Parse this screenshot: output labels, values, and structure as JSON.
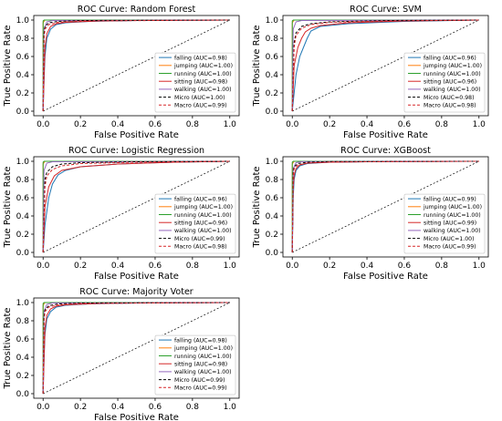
{
  "colors": {
    "falling": "#1f77b4",
    "jumping": "#ff7f0e",
    "running": "#2ca02c",
    "sitting": "#d62728",
    "walking": "#9467bd",
    "micro": "#000000",
    "macro": "#d62728",
    "diagonal": "#000000"
  },
  "chart_data": [
    {
      "type": "line",
      "title": "ROC Curve: Random Forest",
      "xlabel": "False Positive Rate",
      "ylabel": "True Positive Rate",
      "xlim": [
        -0.05,
        1.05
      ],
      "ylim": [
        -0.05,
        1.05
      ],
      "xticks": [
        "0.0",
        "0.2",
        "0.4",
        "0.6",
        "0.8",
        "1.0"
      ],
      "yticks": [
        "0.0",
        "0.2",
        "0.4",
        "0.6",
        "0.8",
        "1.0"
      ],
      "legend_position": "lower-right",
      "series": [
        {
          "name": "falling (AUC=0.98)",
          "key": "falling",
          "dash": "solid",
          "x": [
            0,
            0.005,
            0.01,
            0.02,
            0.04,
            0.07,
            0.12,
            0.25,
            0.5,
            1
          ],
          "y": [
            0,
            0.35,
            0.6,
            0.8,
            0.9,
            0.95,
            0.97,
            0.985,
            0.995,
            1
          ]
        },
        {
          "name": "jumping (AUC=1.00)",
          "key": "jumping",
          "dash": "solid",
          "x": [
            0,
            0,
            0.01,
            1
          ],
          "y": [
            0,
            0.97,
            1,
            1
          ]
        },
        {
          "name": "running (AUC=1.00)",
          "key": "running",
          "dash": "solid",
          "x": [
            0,
            0,
            0.005,
            1
          ],
          "y": [
            0,
            0.99,
            1,
            1
          ]
        },
        {
          "name": "sitting (AUC=0.98)",
          "key": "sitting",
          "dash": "solid",
          "x": [
            0,
            0.01,
            0.02,
            0.04,
            0.07,
            0.12,
            0.3,
            0.6,
            1
          ],
          "y": [
            0,
            0.7,
            0.85,
            0.93,
            0.96,
            0.975,
            0.99,
            0.997,
            1
          ]
        },
        {
          "name": "walking (AUC=1.00)",
          "key": "walking",
          "dash": "solid",
          "x": [
            0,
            0.005,
            0.02,
            0.05,
            1
          ],
          "y": [
            0,
            0.9,
            0.98,
            0.995,
            1
          ]
        },
        {
          "name": "Micro (AUC=1.00)",
          "key": "micro",
          "dash": "dashed",
          "x": [
            0,
            0.005,
            0.01,
            0.03,
            0.08,
            0.2,
            1
          ],
          "y": [
            0,
            0.85,
            0.93,
            0.97,
            0.985,
            0.995,
            1
          ]
        },
        {
          "name": "Macro (AUC=0.99)",
          "key": "macro",
          "dash": "dashed",
          "x": [
            0,
            0.005,
            0.01,
            0.03,
            0.08,
            0.2,
            1
          ],
          "y": [
            0,
            0.8,
            0.9,
            0.95,
            0.975,
            0.99,
            1
          ]
        }
      ]
    },
    {
      "type": "line",
      "title": "ROC Curve: SVM",
      "xlabel": "False Positive Rate",
      "ylabel": "True Positive Rate",
      "xlim": [
        -0.05,
        1.05
      ],
      "ylim": [
        -0.05,
        1.05
      ],
      "xticks": [
        "0.0",
        "0.2",
        "0.4",
        "0.6",
        "0.8",
        "1.0"
      ],
      "yticks": [
        "0.0",
        "0.2",
        "0.4",
        "0.6",
        "0.8",
        "1.0"
      ],
      "legend_position": "lower-right",
      "series": [
        {
          "name": "falling (AUC=0.96)",
          "key": "falling",
          "dash": "solid",
          "x": [
            0,
            0.02,
            0.04,
            0.06,
            0.08,
            0.1,
            0.15,
            0.3,
            0.6,
            1
          ],
          "y": [
            0,
            0.4,
            0.6,
            0.7,
            0.8,
            0.88,
            0.93,
            0.96,
            0.985,
            1
          ]
        },
        {
          "name": "jumping (AUC=1.00)",
          "key": "jumping",
          "dash": "solid",
          "x": [
            0,
            0,
            0.01,
            1
          ],
          "y": [
            0,
            0.97,
            1,
            1
          ]
        },
        {
          "name": "running (AUC=1.00)",
          "key": "running",
          "dash": "solid",
          "x": [
            0,
            0,
            0.005,
            1
          ],
          "y": [
            0,
            0.99,
            1,
            1
          ]
        },
        {
          "name": "sitting (AUC=0.96)",
          "key": "sitting",
          "dash": "solid",
          "x": [
            0,
            0.01,
            0.03,
            0.05,
            0.07,
            0.1,
            0.15,
            0.3,
            0.6,
            1
          ],
          "y": [
            0,
            0.5,
            0.7,
            0.8,
            0.87,
            0.91,
            0.94,
            0.97,
            0.99,
            1
          ]
        },
        {
          "name": "walking (AUC=1.00)",
          "key": "walking",
          "dash": "solid",
          "x": [
            0,
            0.005,
            0.02,
            0.05,
            1
          ],
          "y": [
            0,
            0.9,
            0.98,
            0.995,
            1
          ]
        },
        {
          "name": "Micro (AUC=0.98)",
          "key": "micro",
          "dash": "dashed",
          "x": [
            0,
            0.01,
            0.02,
            0.05,
            0.1,
            0.2,
            0.5,
            1
          ],
          "y": [
            0,
            0.75,
            0.86,
            0.93,
            0.96,
            0.98,
            0.995,
            1
          ]
        },
        {
          "name": "Macro (AUC=0.98)",
          "key": "macro",
          "dash": "dashed",
          "x": [
            0,
            0.01,
            0.02,
            0.05,
            0.1,
            0.2,
            0.5,
            1
          ],
          "y": [
            0,
            0.7,
            0.83,
            0.91,
            0.95,
            0.975,
            0.99,
            1
          ]
        }
      ]
    },
    {
      "type": "line",
      "title": "ROC Curve: Logistic Regression",
      "xlabel": "False Positive Rate",
      "ylabel": "True Positive Rate",
      "xlim": [
        -0.05,
        1.05
      ],
      "ylim": [
        -0.05,
        1.05
      ],
      "xticks": [
        "0.0",
        "0.2",
        "0.4",
        "0.6",
        "0.8",
        "1.0"
      ],
      "yticks": [
        "0.0",
        "0.2",
        "0.4",
        "0.6",
        "0.8",
        "1.0"
      ],
      "legend_position": "lower-right",
      "series": [
        {
          "name": "falling (AUC=0.96)",
          "key": "falling",
          "dash": "solid",
          "x": [
            0,
            0.01,
            0.03,
            0.05,
            0.08,
            0.12,
            0.2,
            0.4,
            0.7,
            1
          ],
          "y": [
            0,
            0.3,
            0.6,
            0.75,
            0.85,
            0.9,
            0.94,
            0.97,
            0.99,
            1
          ]
        },
        {
          "name": "jumping (AUC=1.00)",
          "key": "jumping",
          "dash": "solid",
          "x": [
            0,
            0,
            0.01,
            1
          ],
          "y": [
            0,
            0.97,
            1,
            1
          ]
        },
        {
          "name": "running (AUC=1.00)",
          "key": "running",
          "dash": "solid",
          "x": [
            0,
            0,
            0.005,
            1
          ],
          "y": [
            0,
            0.99,
            1,
            1
          ]
        },
        {
          "name": "sitting (AUC=0.96)",
          "key": "sitting",
          "dash": "solid",
          "x": [
            0,
            0.01,
            0.03,
            0.06,
            0.1,
            0.2,
            0.4,
            0.7,
            1
          ],
          "y": [
            0,
            0.5,
            0.72,
            0.84,
            0.9,
            0.94,
            0.97,
            0.99,
            1
          ]
        },
        {
          "name": "walking (AUC=1.00)",
          "key": "walking",
          "dash": "solid",
          "x": [
            0,
            0.005,
            0.02,
            0.05,
            1
          ],
          "y": [
            0,
            0.9,
            0.98,
            0.995,
            1
          ]
        },
        {
          "name": "Micro (AUC=0.99)",
          "key": "micro",
          "dash": "dashed",
          "x": [
            0,
            0.01,
            0.02,
            0.05,
            0.1,
            0.2,
            0.5,
            1
          ],
          "y": [
            0,
            0.8,
            0.88,
            0.94,
            0.97,
            0.985,
            0.995,
            1
          ]
        },
        {
          "name": "Macro (AUC=0.98)",
          "key": "macro",
          "dash": "dashed",
          "x": [
            0,
            0.01,
            0.02,
            0.05,
            0.1,
            0.2,
            0.5,
            1
          ],
          "y": [
            0,
            0.72,
            0.84,
            0.91,
            0.95,
            0.975,
            0.99,
            1
          ]
        }
      ]
    },
    {
      "type": "line",
      "title": "ROC Curve: XGBoost",
      "xlabel": "False Positive Rate",
      "ylabel": "True Positive Rate",
      "xlim": [
        -0.05,
        1.05
      ],
      "ylim": [
        -0.05,
        1.05
      ],
      "xticks": [
        "0.0",
        "0.2",
        "0.4",
        "0.6",
        "0.8",
        "1.0"
      ],
      "yticks": [
        "0.0",
        "0.2",
        "0.4",
        "0.6",
        "0.8",
        "1.0"
      ],
      "legend_position": "lower-right",
      "series": [
        {
          "name": "falling (AUC=0.99)",
          "key": "falling",
          "dash": "solid",
          "x": [
            0,
            0.005,
            0.01,
            0.02,
            0.04,
            0.08,
            0.2,
            0.5,
            1
          ],
          "y": [
            0,
            0.6,
            0.8,
            0.9,
            0.95,
            0.975,
            0.99,
            0.997,
            1
          ]
        },
        {
          "name": "jumping (AUC=1.00)",
          "key": "jumping",
          "dash": "solid",
          "x": [
            0,
            0,
            0.01,
            1
          ],
          "y": [
            0,
            0.97,
            1,
            1
          ]
        },
        {
          "name": "running (AUC=1.00)",
          "key": "running",
          "dash": "solid",
          "x": [
            0,
            0,
            0.005,
            1
          ],
          "y": [
            0,
            0.99,
            1,
            1
          ]
        },
        {
          "name": "sitting (AUC=0.99)",
          "key": "sitting",
          "dash": "solid",
          "x": [
            0,
            0.005,
            0.01,
            0.02,
            0.04,
            0.08,
            0.2,
            0.5,
            1
          ],
          "y": [
            0,
            0.7,
            0.85,
            0.92,
            0.96,
            0.98,
            0.99,
            0.997,
            1
          ]
        },
        {
          "name": "walking (AUC=1.00)",
          "key": "walking",
          "dash": "solid",
          "x": [
            0,
            0.005,
            0.02,
            0.05,
            1
          ],
          "y": [
            0,
            0.92,
            0.985,
            0.996,
            1
          ]
        },
        {
          "name": "Micro (AUC=1.00)",
          "key": "micro",
          "dash": "dashed",
          "x": [
            0,
            0.005,
            0.01,
            0.03,
            0.08,
            0.2,
            1
          ],
          "y": [
            0,
            0.88,
            0.94,
            0.975,
            0.99,
            0.997,
            1
          ]
        },
        {
          "name": "Macro (AUC=0.99)",
          "key": "macro",
          "dash": "dashed",
          "x": [
            0,
            0.005,
            0.01,
            0.03,
            0.08,
            0.2,
            1
          ],
          "y": [
            0,
            0.85,
            0.92,
            0.96,
            0.98,
            0.993,
            1
          ]
        }
      ]
    },
    {
      "type": "line",
      "title": "ROC Curve: Majority Voter",
      "xlabel": "False Positive Rate",
      "ylabel": "True Positive Rate",
      "xlim": [
        -0.05,
        1.05
      ],
      "ylim": [
        -0.05,
        1.05
      ],
      "xticks": [
        "0.0",
        "0.2",
        "0.4",
        "0.6",
        "0.8",
        "1.0"
      ],
      "yticks": [
        "0.0",
        "0.2",
        "0.4",
        "0.6",
        "0.8",
        "1.0"
      ],
      "legend_position": "lower-right",
      "series": [
        {
          "name": "falling (AUC=0.98)",
          "key": "falling",
          "dash": "solid",
          "x": [
            0,
            0.005,
            0.01,
            0.02,
            0.04,
            0.07,
            0.12,
            0.25,
            0.5,
            1
          ],
          "y": [
            0,
            0.4,
            0.65,
            0.82,
            0.9,
            0.95,
            0.97,
            0.985,
            0.995,
            1
          ]
        },
        {
          "name": "jumping (AUC=1.00)",
          "key": "jumping",
          "dash": "solid",
          "x": [
            0,
            0,
            0.01,
            1
          ],
          "y": [
            0,
            0.97,
            1,
            1
          ]
        },
        {
          "name": "running (AUC=1.00)",
          "key": "running",
          "dash": "solid",
          "x": [
            0,
            0,
            0.005,
            1
          ],
          "y": [
            0,
            0.99,
            1,
            1
          ]
        },
        {
          "name": "sitting (AUC=0.98)",
          "key": "sitting",
          "dash": "solid",
          "x": [
            0,
            0.01,
            0.02,
            0.04,
            0.07,
            0.12,
            0.3,
            0.6,
            1
          ],
          "y": [
            0,
            0.72,
            0.86,
            0.93,
            0.96,
            0.975,
            0.99,
            0.997,
            1
          ]
        },
        {
          "name": "walking (AUC=1.00)",
          "key": "walking",
          "dash": "solid",
          "x": [
            0,
            0.005,
            0.02,
            0.05,
            1
          ],
          "y": [
            0,
            0.9,
            0.98,
            0.995,
            1
          ]
        },
        {
          "name": "Micro (AUC=0.99)",
          "key": "micro",
          "dash": "dashed",
          "x": [
            0,
            0.005,
            0.01,
            0.03,
            0.08,
            0.2,
            1
          ],
          "y": [
            0,
            0.84,
            0.92,
            0.965,
            0.985,
            0.995,
            1
          ]
        },
        {
          "name": "Macro (AUC=0.99)",
          "key": "macro",
          "dash": "dashed",
          "x": [
            0,
            0.005,
            0.01,
            0.03,
            0.08,
            0.2,
            1
          ],
          "y": [
            0,
            0.8,
            0.9,
            0.95,
            0.975,
            0.99,
            1
          ]
        }
      ]
    }
  ]
}
